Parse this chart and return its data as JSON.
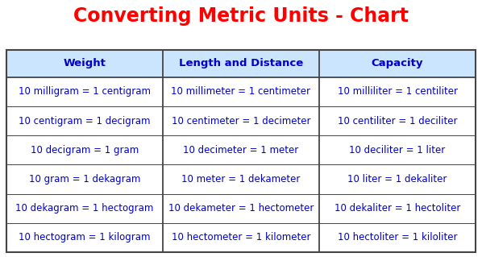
{
  "title": "Converting Metric Units - Chart",
  "title_color": "#ff0000",
  "title_fontsize": 17,
  "header_color": "#0000cc",
  "header_fontsize": 9.5,
  "cell_color": "#0000cc",
  "cell_fontsize": 8.5,
  "bg_color": "#ffffff",
  "border_color": "#444444",
  "header_bg": "#cce5ff",
  "headers": [
    "Weight",
    "Length and Distance",
    "Capacity"
  ],
  "rows": [
    [
      "10 milligram = 1 centigram",
      "10 millimeter = 1 centimeter",
      "10 milliliter = 1 centiliter"
    ],
    [
      "10 centigram = 1 decigram",
      "10 centimeter = 1 decimeter",
      "10 centiliter = 1 deciliter"
    ],
    [
      "10 decigram = 1 gram",
      "10 decimeter = 1 meter",
      "10 deciliter = 1 liter"
    ],
    [
      "10 gram = 1 dekagram",
      "10 meter = 1 dekameter",
      "10 liter = 1 dekaliter"
    ],
    [
      "10 dekagram = 1 hectogram",
      "10 dekameter = 1 hectometer",
      "10 dekaliter = 1 hectoliter"
    ],
    [
      "10 hectogram = 1 kilogram",
      "10 hectometer = 1 kilometer",
      "10 hectoliter = 1 kiloliter"
    ]
  ]
}
